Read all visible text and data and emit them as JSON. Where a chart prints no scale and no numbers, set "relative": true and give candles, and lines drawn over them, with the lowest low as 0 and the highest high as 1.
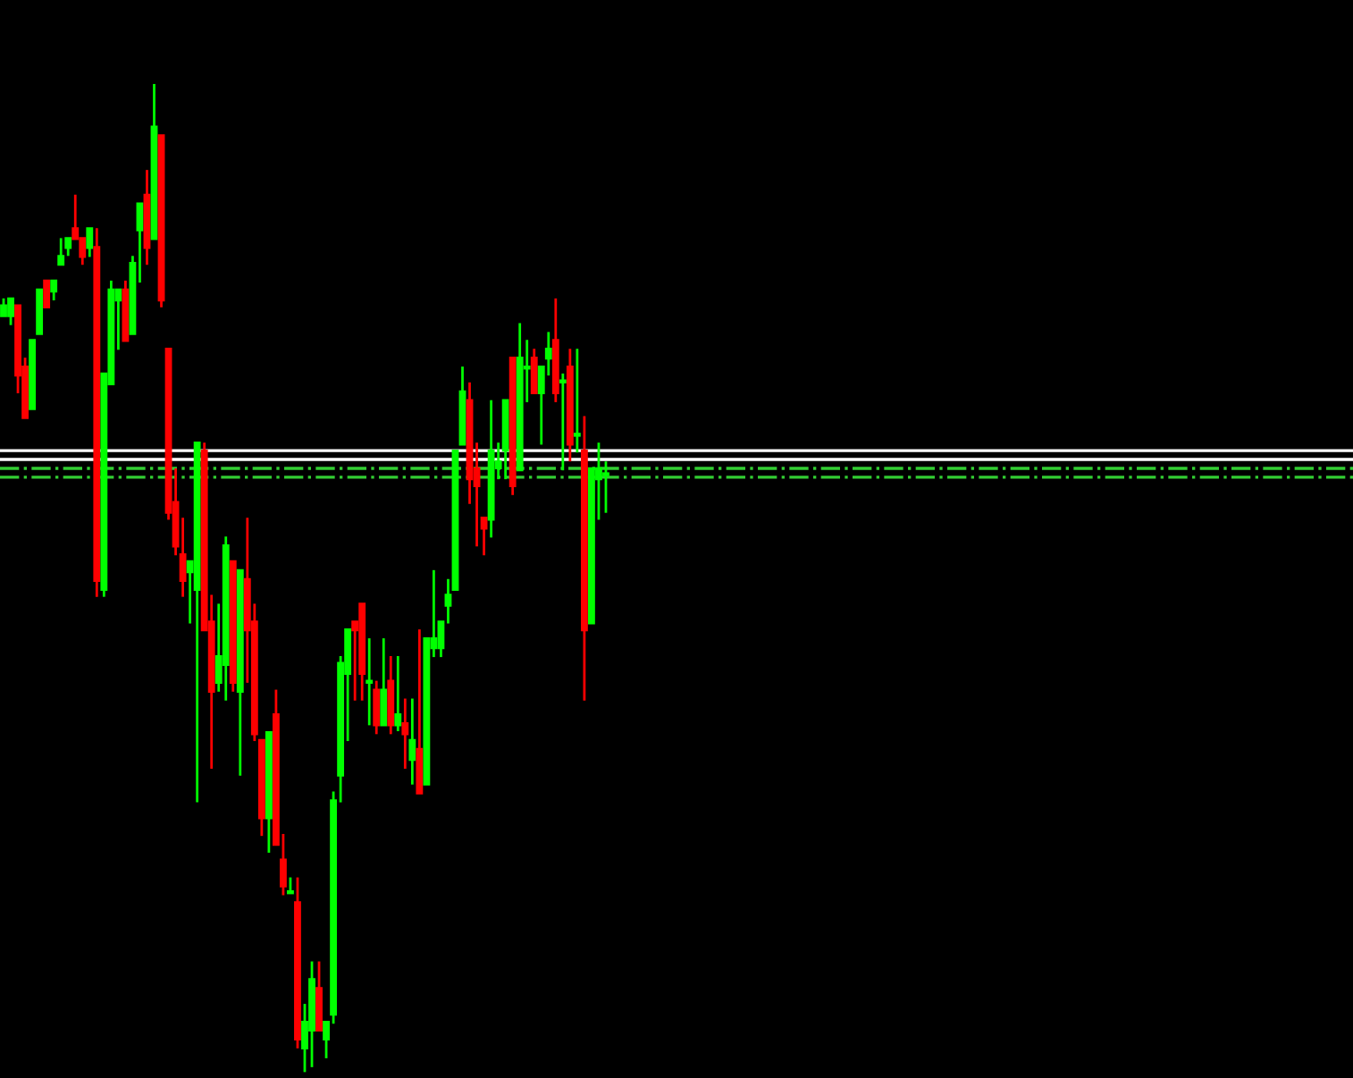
{
  "chart_data": {
    "type": "candlestick",
    "relative": true,
    "categories": [
      null,
      null,
      null,
      null,
      null,
      null,
      null,
      null,
      null,
      null,
      null,
      null,
      null,
      null,
      null,
      null,
      null,
      null,
      null,
      null,
      null,
      null,
      null,
      null,
      null,
      null,
      null,
      null,
      null,
      null,
      null,
      null,
      null,
      null,
      null,
      null,
      null,
      null,
      null,
      null,
      null,
      null,
      null,
      null,
      null,
      null,
      null,
      null,
      null,
      null,
      null,
      null,
      null,
      null,
      null,
      null,
      null,
      null,
      null,
      null,
      null,
      null,
      null,
      null,
      null,
      null,
      null,
      null,
      null,
      null,
      null,
      null,
      null,
      null,
      null,
      null,
      null,
      null,
      null,
      null,
      null,
      null,
      null,
      null,
      null
    ],
    "ohlc": [
      [
        0.765,
        0.783,
        0.765,
        0.776
      ],
      [
        0.765,
        0.783,
        0.756,
        0.783
      ],
      [
        0.776,
        0.776,
        0.687,
        0.705
      ],
      [
        0.714,
        0.723,
        0.662,
        0.662
      ],
      [
        0.671,
        0.741,
        0.671,
        0.741
      ],
      [
        0.747,
        0.792,
        0.747,
        0.792
      ],
      [
        0.801,
        0.801,
        0.774,
        0.774
      ],
      [
        0.79,
        0.801,
        0.781,
        0.801
      ],
      [
        0.817,
        0.844,
        0.817,
        0.826
      ],
      [
        0.834,
        0.844,
        0.826,
        0.844
      ],
      [
        0.854,
        0.888,
        0.843,
        0.843
      ],
      [
        0.844,
        0.844,
        0.817,
        0.825
      ],
      [
        0.834,
        0.854,
        0.825,
        0.854
      ],
      [
        0.835,
        0.854,
        0.481,
        0.497
      ],
      [
        0.488,
        0.707,
        0.481,
        0.707
      ],
      [
        0.696,
        0.801,
        0.696,
        0.792
      ],
      [
        0.781,
        0.792,
        0.731,
        0.792
      ],
      [
        0.792,
        0.801,
        0.74,
        0.74
      ],
      [
        0.747,
        0.826,
        0.747,
        0.819
      ],
      [
        0.852,
        0.879,
        0.799,
        0.879
      ],
      [
        0.888,
        0.913,
        0.817,
        0.834
      ],
      [
        0.843,
        1.0,
        0.843,
        0.957
      ],
      [
        0.948,
        0.948,
        0.774,
        0.781
      ],
      [
        0.732,
        0.732,
        0.559,
        0.566
      ],
      [
        0.577,
        0.611,
        0.523,
        0.532
      ],
      [
        0.524,
        0.561,
        0.481,
        0.497
      ],
      [
        0.506,
        0.517,
        0.454,
        0.517
      ],
      [
        0.488,
        0.637,
        0.273,
        0.637
      ],
      [
        0.629,
        0.637,
        0.447,
        0.447
      ],
      [
        0.456,
        0.483,
        0.307,
        0.385
      ],
      [
        0.394,
        0.474,
        0.385,
        0.421
      ],
      [
        0.412,
        0.542,
        0.376,
        0.533
      ],
      [
        0.517,
        0.517,
        0.385,
        0.394
      ],
      [
        0.385,
        0.508,
        0.3,
        0.508
      ],
      [
        0.499,
        0.561,
        0.394,
        0.447
      ],
      [
        0.456,
        0.474,
        0.335,
        0.342
      ],
      [
        0.336,
        0.336,
        0.239,
        0.257
      ],
      [
        0.257,
        0.344,
        0.222,
        0.344
      ],
      [
        0.362,
        0.387,
        0.23,
        0.23
      ],
      [
        0.215,
        0.241,
        0.179,
        0.188
      ],
      [
        0.181,
        0.197,
        0.181,
        0.183
      ],
      [
        0.172,
        0.197,
        0.024,
        0.033
      ],
      [
        0.024,
        0.069,
        0.0,
        0.051
      ],
      [
        0.042,
        0.112,
        0.005,
        0.094
      ],
      [
        0.085,
        0.112,
        0.042,
        0.042
      ],
      [
        0.033,
        0.051,
        0.014,
        0.051
      ],
      [
        0.058,
        0.284,
        0.049,
        0.275
      ],
      [
        0.3,
        0.421,
        0.273,
        0.414
      ],
      [
        0.403,
        0.448,
        0.335,
        0.448
      ],
      [
        0.456,
        0.456,
        0.376,
        0.447
      ],
      [
        0.474,
        0.474,
        0.376,
        0.403
      ],
      [
        0.394,
        0.439,
        0.351,
        0.396
      ],
      [
        0.387,
        0.396,
        0.342,
        0.351
      ],
      [
        0.351,
        0.439,
        0.351,
        0.387
      ],
      [
        0.396,
        0.421,
        0.342,
        0.351
      ],
      [
        0.351,
        0.421,
        0.345,
        0.362
      ],
      [
        0.353,
        0.378,
        0.307,
        0.342
      ],
      [
        0.316,
        0.378,
        0.291,
        0.336
      ],
      [
        0.327,
        0.448,
        0.282,
        0.282
      ],
      [
        0.291,
        0.439,
        0.291,
        0.439
      ],
      [
        0.429,
        0.508,
        0.42,
        0.439
      ],
      [
        0.429,
        0.456,
        0.42,
        0.456
      ],
      [
        0.472,
        0.499,
        0.454,
        0.483
      ],
      [
        0.488,
        0.629,
        0.488,
        0.629
      ],
      [
        0.635,
        0.714,
        0.635,
        0.689
      ],
      [
        0.68,
        0.698,
        0.575,
        0.6
      ],
      [
        0.611,
        0.637,
        0.532,
        0.593
      ],
      [
        0.561,
        0.561,
        0.523,
        0.55
      ],
      [
        0.559,
        0.68,
        0.541,
        0.629
      ],
      [
        0.611,
        0.637,
        0.6,
        0.618
      ],
      [
        0.629,
        0.68,
        0.6,
        0.68
      ],
      [
        0.723,
        0.723,
        0.584,
        0.593
      ],
      [
        0.609,
        0.758,
        0.609,
        0.723
      ],
      [
        0.712,
        0.741,
        0.678,
        0.714
      ],
      [
        0.723,
        0.732,
        0.687,
        0.687
      ],
      [
        0.687,
        0.714,
        0.635,
        0.714
      ],
      [
        0.722,
        0.749,
        0.705,
        0.732
      ],
      [
        0.741,
        0.783,
        0.678,
        0.687
      ],
      [
        0.698,
        0.707,
        0.609,
        0.7
      ],
      [
        0.714,
        0.732,
        0.618,
        0.635
      ],
      [
        0.644,
        0.732,
        0.627,
        0.646
      ],
      [
        0.629,
        0.664,
        0.376,
        0.447
      ],
      [
        0.454,
        0.611,
        0.454,
        0.611
      ],
      [
        0.6,
        0.637,
        0.559,
        0.611
      ],
      [
        0.604,
        0.618,
        0.566,
        0.606
      ]
    ],
    "colors": [
      "#00ff00",
      "#00ff00",
      "#ff0000",
      "#ff0000",
      "#00ff00",
      "#00ff00",
      "#ff0000",
      "#00ff00",
      "#00ff00",
      "#00ff00",
      "#ff0000",
      "#ff0000",
      "#00ff00",
      "#ff0000",
      "#00ff00",
      "#00ff00",
      "#00ff00",
      "#ff0000",
      "#00ff00",
      "#00ff00",
      "#ff0000",
      "#00ff00",
      "#ff0000",
      "#ff0000",
      "#ff0000",
      "#ff0000",
      "#00ff00",
      "#00ff00",
      "#ff0000",
      "#ff0000",
      "#00ff00",
      "#00ff00",
      "#ff0000",
      "#00ff00",
      "#ff0000",
      "#ff0000",
      "#ff0000",
      "#00ff00",
      "#ff0000",
      "#ff0000",
      "#00ff00",
      "#ff0000",
      "#00ff00",
      "#00ff00",
      "#ff0000",
      "#00ff00",
      "#00ff00",
      "#00ff00",
      "#00ff00",
      "#ff0000",
      "#ff0000",
      "#00ff00",
      "#ff0000",
      "#00ff00",
      "#ff0000",
      "#00ff00",
      "#ff0000",
      "#00ff00",
      "#ff0000",
      "#00ff00",
      "#00ff00",
      "#00ff00",
      "#00ff00",
      "#00ff00",
      "#00ff00",
      "#ff0000",
      "#ff0000",
      "#ff0000",
      "#00ff00",
      "#00ff00",
      "#00ff00",
      "#ff0000",
      "#00ff00",
      "#00ff00",
      "#ff0000",
      "#00ff00",
      "#00ff00",
      "#ff0000",
      "#00ff00",
      "#ff0000",
      "#00ff00",
      "#ff0000",
      "#00ff00",
      "#00ff00",
      "#00ff00"
    ],
    "ref_lines": [
      {
        "axis": "y",
        "value": 0.629,
        "color": "#ffffff",
        "line_style": "solid"
      },
      {
        "axis": "y",
        "value": 0.62,
        "color": "#ffffff",
        "line_style": "solid"
      },
      {
        "axis": "y",
        "value": 0.611,
        "color": "#32cd32",
        "line_style": "dashdot"
      },
      {
        "axis": "y",
        "value": 0.602,
        "color": "#32cd32",
        "line_style": "dashdot"
      }
    ]
  }
}
